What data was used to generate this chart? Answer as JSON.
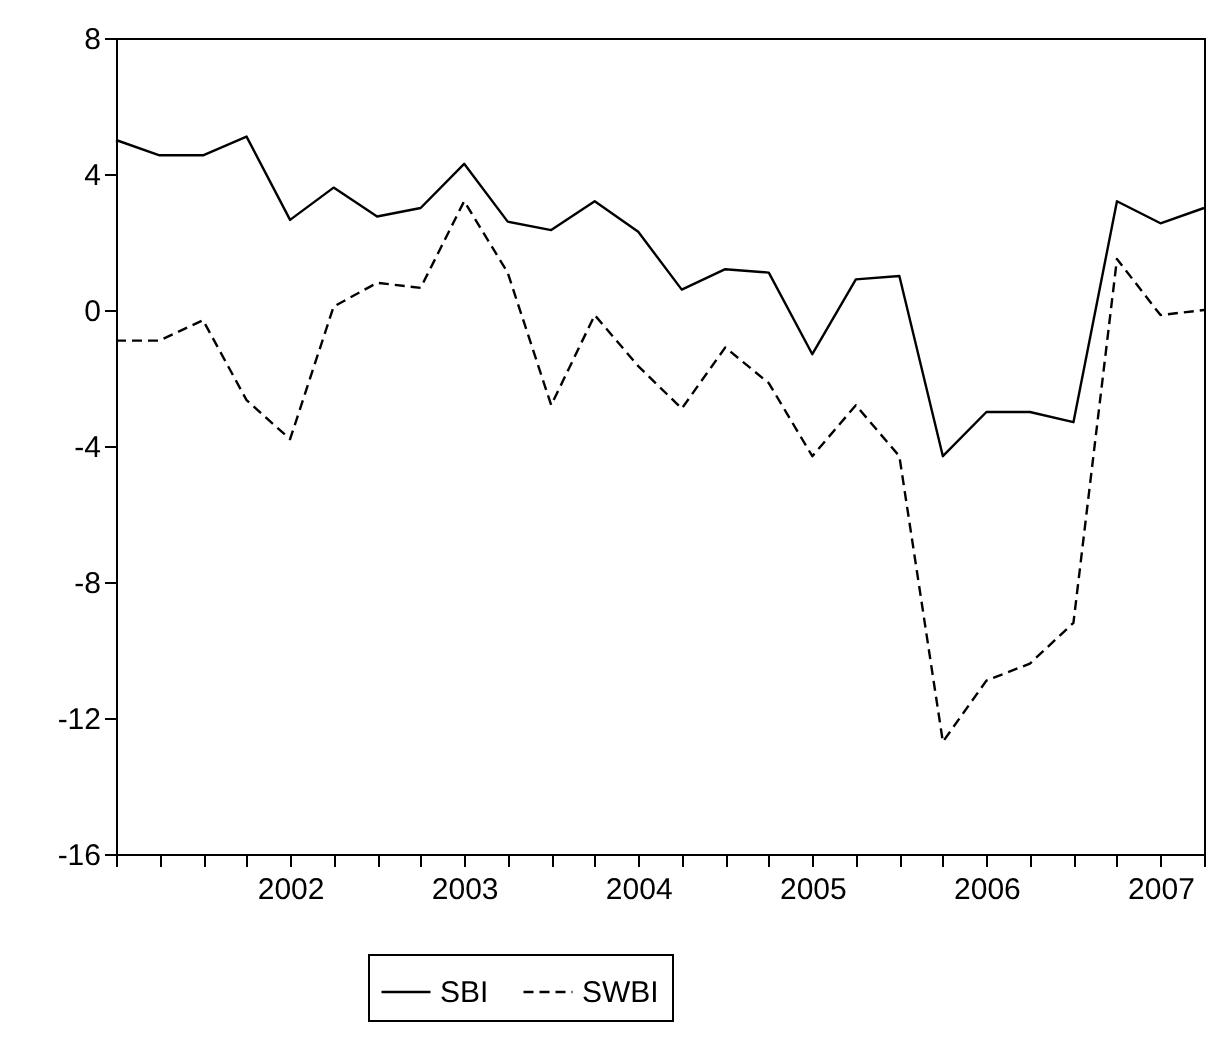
{
  "chart_data": {
    "type": "line",
    "x": [
      2001,
      2001.25,
      2001.5,
      2001.75,
      2002,
      2002.25,
      2002.5,
      2002.75,
      2003,
      2003.25,
      2003.5,
      2003.75,
      2004,
      2004.25,
      2004.5,
      2004.75,
      2005,
      2005.25,
      2005.5,
      2005.75,
      2006,
      2006.25,
      2006.5,
      2006.75,
      2007,
      2007.25
    ],
    "series": [
      {
        "name": "SBI",
        "color": "#000000",
        "line_style": "solid",
        "values": [
          5.0,
          4.55,
          4.55,
          5.1,
          2.65,
          3.6,
          2.75,
          3.0,
          4.3,
          2.6,
          2.35,
          3.2,
          2.3,
          0.6,
          1.2,
          1.1,
          -1.3,
          0.9,
          1.0,
          -4.3,
          -3.0,
          -3.0,
          -3.3,
          3.2,
          2.55,
          3.0
        ]
      },
      {
        "name": "SWBI",
        "color": "#000000",
        "line_style": "dashed",
        "values": [
          -0.9,
          -0.9,
          -0.3,
          -2.65,
          -3.8,
          0.1,
          0.8,
          0.65,
          3.2,
          1.1,
          -2.8,
          -0.15,
          -1.65,
          -2.9,
          -1.1,
          -2.15,
          -4.3,
          -2.8,
          -4.3,
          -12.7,
          -10.9,
          -10.4,
          -9.2,
          1.5,
          -0.15,
          0.0
        ]
      }
    ],
    "xlim": [
      2001,
      2007.25
    ],
    "xticks": [
      {
        "value": 2001,
        "label": null
      },
      {
        "value": 2001.25,
        "label": null
      },
      {
        "value": 2001.5,
        "label": null
      },
      {
        "value": 2001.75,
        "label": null
      },
      2002,
      {
        "value": 2002.25,
        "label": null
      },
      {
        "value": 2002.5,
        "label": null
      },
      {
        "value": 2002.75,
        "label": null
      },
      2003,
      {
        "value": 2003.25,
        "label": null
      },
      {
        "value": 2003.5,
        "label": null
      },
      {
        "value": 2003.75,
        "label": null
      },
      2004,
      {
        "value": 2004.25,
        "label": null
      },
      {
        "value": 2004.5,
        "label": null
      },
      {
        "value": 2004.75,
        "label": null
      },
      2005,
      {
        "value": 2005.25,
        "label": null
      },
      {
        "value": 2005.5,
        "label": null
      },
      {
        "value": 2005.75,
        "label": null
      },
      2006,
      {
        "value": 2006.25,
        "label": null
      },
      {
        "value": 2006.5,
        "label": null
      },
      {
        "value": 2006.75,
        "label": null
      },
      2007,
      {
        "value": 2007.25,
        "label": null
      }
    ],
    "ylim": [
      -16,
      8
    ],
    "yticks": [
      -16,
      -12,
      -8,
      -4,
      0,
      4,
      8
    ],
    "grid": false,
    "legend": "bottom"
  }
}
